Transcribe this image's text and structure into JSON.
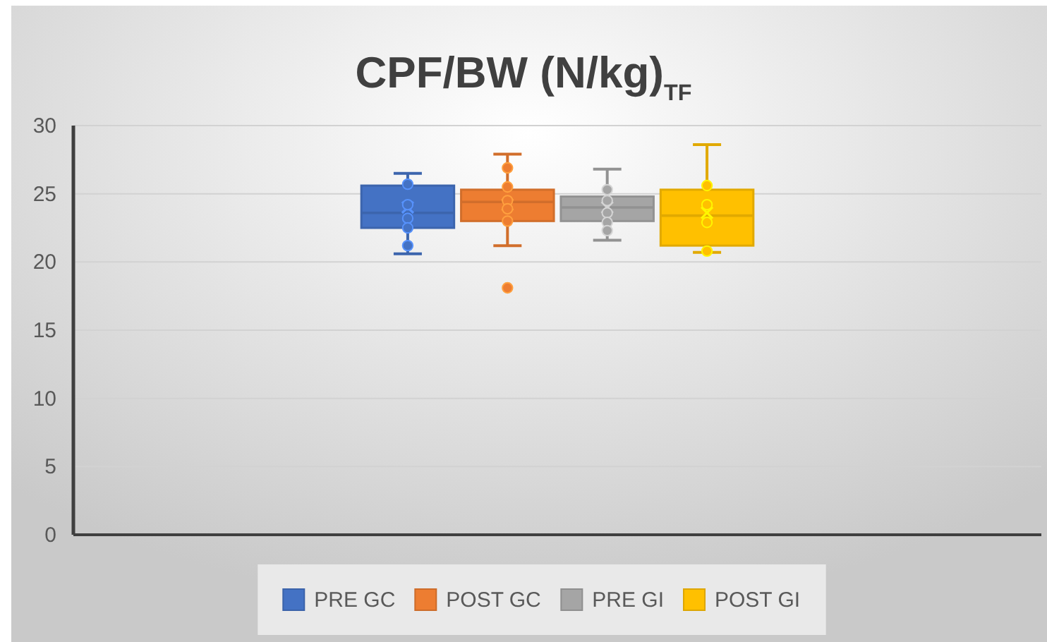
{
  "chart_data": {
    "type": "box",
    "title": "CPF/BW (N/kg)$_{TF}$",
    "categories": [
      null
    ],
    "ylim": [
      0,
      30
    ],
    "yticks": [
      0,
      5,
      10,
      15,
      20,
      25,
      30
    ],
    "grid": "y",
    "legend": "bottom",
    "marker": "circle",
    "series": [
      {
        "name": "PRE GC",
        "color": "#4472c4",
        "boxes": [
          {
            "low": 20.6,
            "q1": 22.5,
            "median": 23.6,
            "q3": 25.6,
            "high": 26.5,
            "mean": 24.0
          }
        ]
      },
      {
        "name": "POST GC",
        "color": "#ed7d31",
        "boxes": [
          {
            "low": 21.2,
            "q1": 23.0,
            "median": 24.4,
            "q3": 25.3,
            "high": 27.9,
            "mean": 24.2,
            "outliers": [
              18.1
            ]
          }
        ]
      },
      {
        "name": "PRE GI",
        "color": "#a5a5a5",
        "boxes": [
          {
            "low": 21.6,
            "q1": 23.0,
            "median": 24.0,
            "q3": 24.8,
            "high": 26.8,
            "mean": 24.0
          }
        ]
      },
      {
        "name": "POST GI",
        "color": "#ffc000",
        "boxes": [
          {
            "low": 20.7,
            "q1": 21.2,
            "median": 23.4,
            "q3": 25.3,
            "high": 28.6,
            "mean": 23.6
          }
        ]
      },
      {
        "type": "scatter",
        "color": "#4472c4",
        "x": [
          null,
          null,
          null,
          null,
          null
        ],
        "values": [
          25.7,
          24.2,
          23.2,
          22.5,
          21.2
        ]
      },
      {
        "type": "scatter",
        "color": "#ed7d31",
        "x": [
          null,
          null,
          null,
          null,
          null
        ],
        "values": [
          26.9,
          25.5,
          24.5,
          23.9,
          23.0
        ]
      },
      {
        "type": "scatter",
        "color": "#a5a5a5",
        "x": [
          null,
          null,
          null,
          null,
          null
        ],
        "values": [
          25.3,
          24.5,
          23.6,
          22.9,
          22.3
        ]
      },
      {
        "type": "scatter",
        "color": "#ffc000",
        "x": [
          null,
          null,
          null,
          null
        ],
        "values": [
          25.6,
          24.2,
          22.9,
          20.8
        ]
      }
    ]
  }
}
